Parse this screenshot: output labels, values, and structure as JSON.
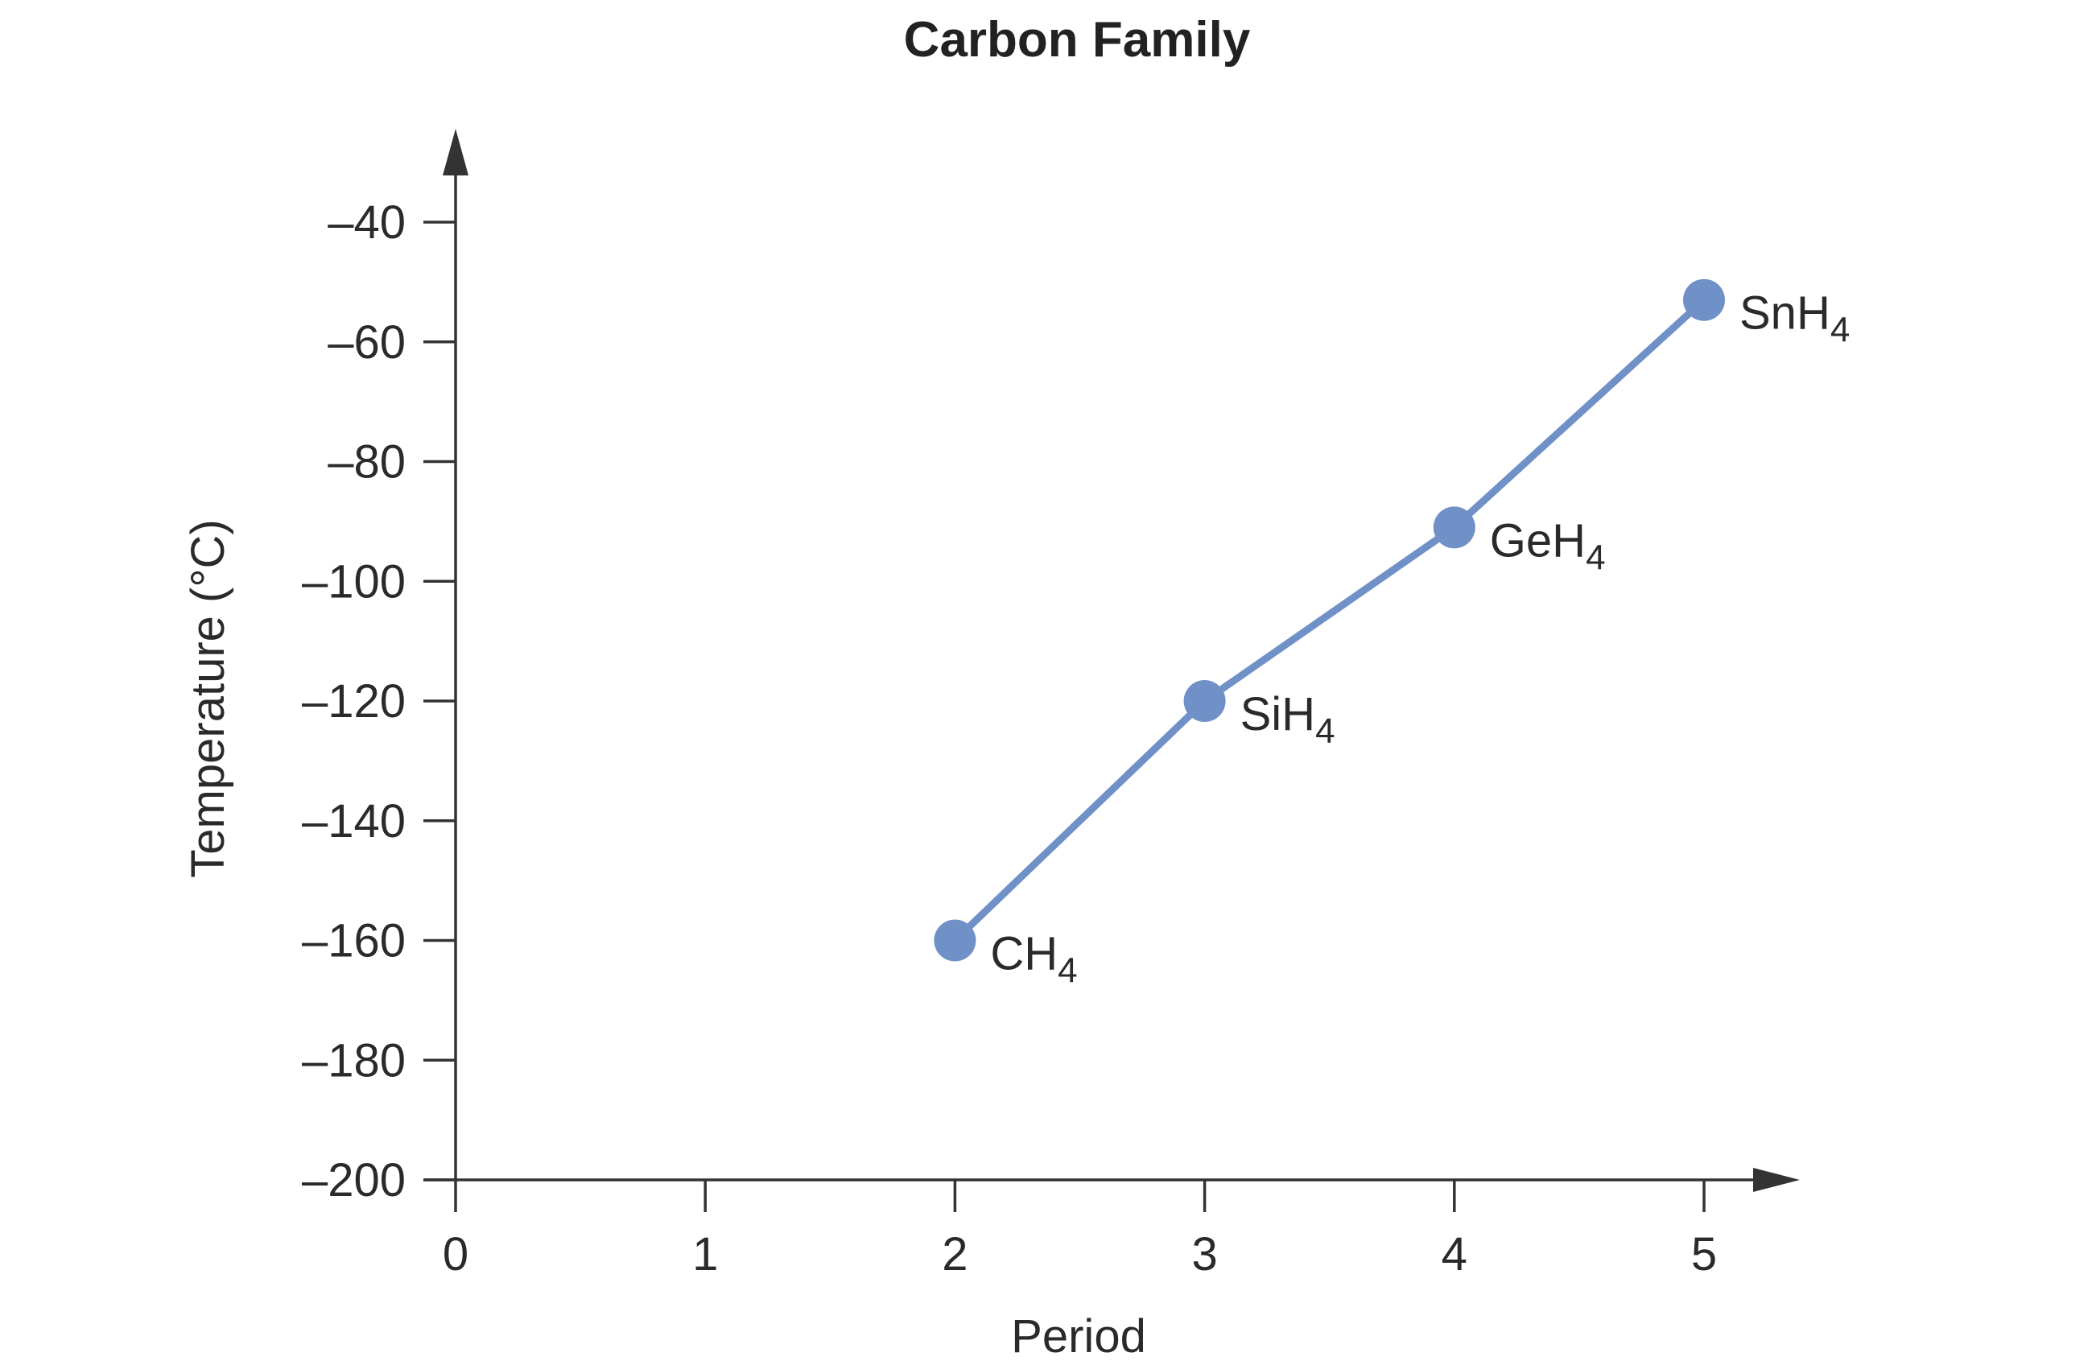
{
  "chart_data": {
    "type": "line",
    "title": "Carbon Family",
    "xlabel": "Period",
    "ylabel": "Temperature (°C)",
    "xlim": [
      0,
      5
    ],
    "ylim": [
      -200,
      -40
    ],
    "xticks": [
      0,
      1,
      2,
      3,
      4,
      5
    ],
    "xtick_labels": [
      "0",
      "1",
      "2",
      "3",
      "4",
      "5"
    ],
    "yticks": [
      -200,
      -180,
      -160,
      -140,
      -120,
      -100,
      -80,
      -60,
      -40
    ],
    "ytick_labels": [
      "–200",
      "–180",
      "–160",
      "–140",
      "–120",
      "–100",
      "–80",
      "–60",
      "–40"
    ],
    "grid": false,
    "legend": "none",
    "series": [
      {
        "color": "#7090c8",
        "points": [
          {
            "x": 2,
            "y": -160,
            "label": {
              "base": "CH",
              "sub": "4"
            }
          },
          {
            "x": 3,
            "y": -120,
            "label": {
              "base": "SiH",
              "sub": "4"
            }
          },
          {
            "x": 4,
            "y": -91,
            "label": {
              "base": "GeH",
              "sub": "4"
            }
          },
          {
            "x": 5,
            "y": -53,
            "label": {
              "base": "SnH",
              "sub": "4"
            }
          }
        ]
      }
    ]
  }
}
